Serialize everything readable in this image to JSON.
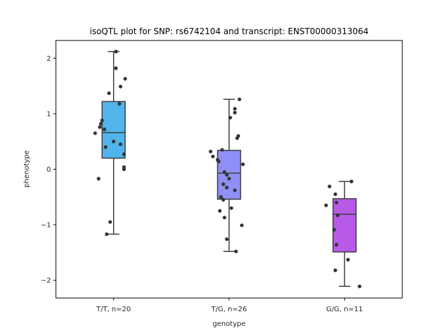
{
  "chart_data": {
    "type": "box",
    "title": "isoQTL plot for SNP: rs6742104 and transcript: ENST00000313064",
    "xlabel": "genotype",
    "ylabel": "phenotype",
    "ylim": [
      -2.32,
      2.32
    ],
    "yticks": [
      2,
      1,
      0,
      -1,
      -2
    ],
    "ytick_labels": [
      "2",
      "1",
      "0",
      "−1",
      "−2"
    ],
    "categories": [
      "T/T, n=20",
      "T/G, n=26",
      "G/G, n=11"
    ],
    "grid": false,
    "legend": "none",
    "boxes": [
      {
        "category": "T/T, n=20",
        "color": "#4fb5ec",
        "whisker_low": -1.17,
        "q1": 0.2,
        "median": 0.66,
        "q3": 1.22,
        "whisker_high": 2.12
      },
      {
        "category": "T/G, n=26",
        "color": "#8f8ff5",
        "whisker_low": -1.48,
        "q1": -0.54,
        "median": -0.07,
        "q3": 0.34,
        "whisker_high": 1.26
      },
      {
        "category": "G/G, n=11",
        "color": "#b75ae8",
        "whisker_low": -2.11,
        "q1": -1.49,
        "median": -0.81,
        "q3": -0.53,
        "whisker_high": -0.22
      }
    ],
    "points": [
      {
        "category": "T/T, n=20",
        "values": [
          2.12,
          1.82,
          1.63,
          1.49,
          1.37,
          1.18,
          0.88,
          0.82,
          0.76,
          0.72,
          0.65,
          0.5,
          0.45,
          0.4,
          0.27,
          0.04,
          0.0,
          -0.17,
          -0.95,
          -1.17
        ],
        "jitter": [
          0.02,
          0.02,
          0.1,
          0.06,
          -0.04,
          0.05,
          -0.1,
          -0.11,
          -0.12,
          -0.08,
          -0.16,
          0.0,
          0.06,
          -0.07,
          0.09,
          0.09,
          0.09,
          -0.13,
          -0.03,
          -0.06
        ]
      },
      {
        "category": "T/G, n=26",
        "values": [
          1.26,
          1.09,
          1.02,
          0.93,
          0.6,
          0.56,
          0.35,
          0.32,
          0.23,
          0.17,
          0.14,
          0.09,
          -0.05,
          -0.1,
          -0.17,
          -0.27,
          -0.33,
          -0.38,
          -0.5,
          -0.55,
          -0.7,
          -0.75,
          -0.87,
          -1.01,
          -1.26,
          -1.48
        ],
        "jitter": [
          0.09,
          0.05,
          0.05,
          0.01,
          0.08,
          0.07,
          -0.06,
          -0.16,
          -0.14,
          -0.1,
          -0.09,
          0.12,
          -0.04,
          -0.02,
          0.0,
          -0.05,
          -0.02,
          0.05,
          -0.07,
          -0.05,
          0.02,
          -0.08,
          -0.04,
          0.11,
          -0.02,
          0.06
        ]
      },
      {
        "category": "G/G, n=11",
        "values": [
          -0.22,
          -0.31,
          -0.45,
          -0.6,
          -0.65,
          -0.83,
          -1.09,
          -1.36,
          -1.63,
          -1.82,
          -2.11
        ],
        "jitter": [
          0.06,
          -0.13,
          -0.08,
          -0.07,
          -0.16,
          -0.06,
          -0.09,
          -0.07,
          0.03,
          -0.08,
          0.13
        ]
      }
    ]
  }
}
